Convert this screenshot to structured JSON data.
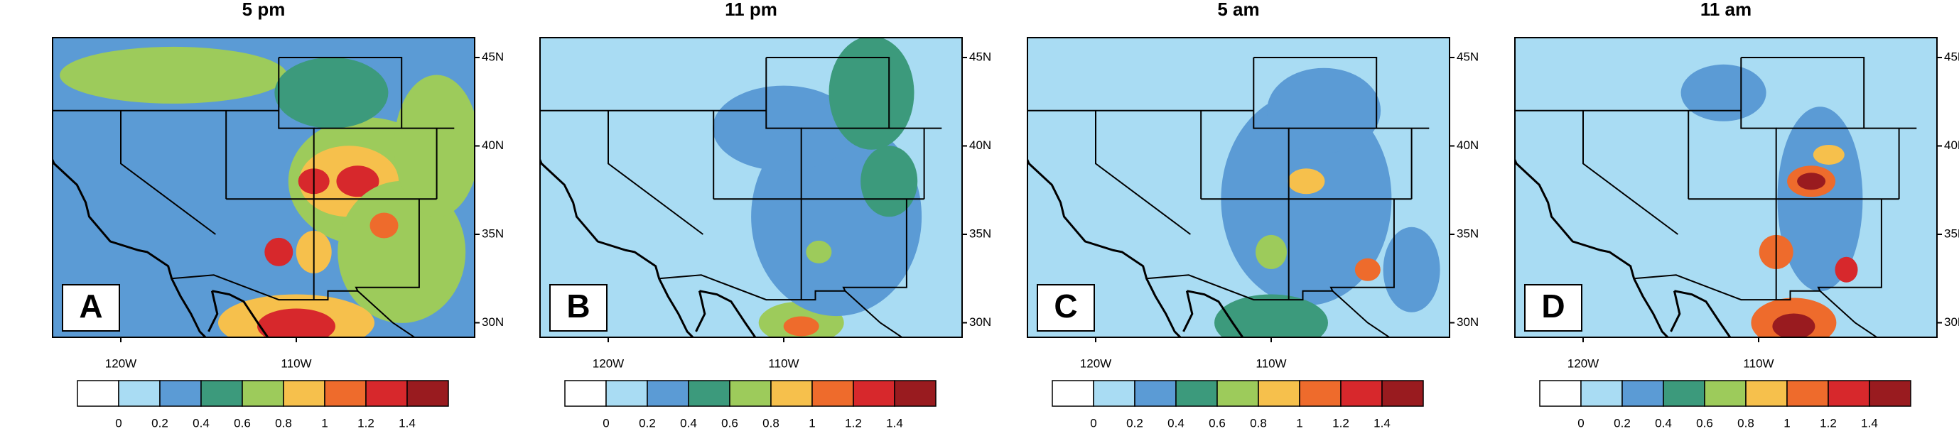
{
  "panels": [
    {
      "title": "5 pm",
      "label": "A"
    },
    {
      "title": "11 pm",
      "label": "B"
    },
    {
      "title": "5 am",
      "label": "C"
    },
    {
      "title": "11 am",
      "label": "D"
    }
  ],
  "lat_ticks": [
    "45N",
    "40N",
    "35N",
    "30N"
  ],
  "lon_ticks": [
    "120W",
    "110W"
  ],
  "colorbar": {
    "labels": [
      "0",
      "0.2",
      "0.4",
      "0.6",
      "0.8",
      "1",
      "1.2",
      "1.4"
    ],
    "colors": [
      "#ffffff",
      "#a9dcf3",
      "#5b9bd5",
      "#3c9a7c",
      "#9dcb5b",
      "#f6c04c",
      "#ee6b2c",
      "#d7282c",
      "#991b1f"
    ]
  }
}
